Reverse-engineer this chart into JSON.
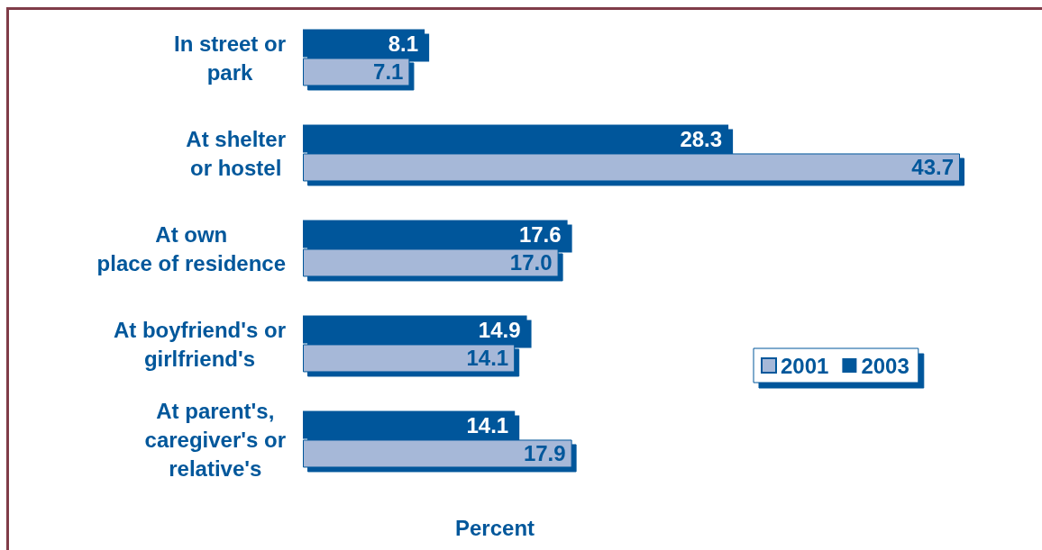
{
  "chart_data": {
    "type": "bar",
    "orientation": "horizontal",
    "xlabel": "Percent",
    "categories": [
      "In street or\npark",
      "At shelter\nor hostel",
      "At own\nplace of residence",
      "At boyfriend's or\ngirlfriend's",
      "At parent's,\ncaregiver's or\nrelative's"
    ],
    "series": [
      {
        "name": "2001",
        "color": "#a6b8d8",
        "values": [
          7.1,
          43.7,
          17.0,
          14.1,
          17.9
        ],
        "value_labels": [
          "7.1",
          "43.7",
          "17.0",
          "14.1",
          "17.9"
        ]
      },
      {
        "name": "2003",
        "color": "#00579b",
        "values": [
          8.1,
          28.3,
          17.6,
          14.9,
          14.1
        ],
        "value_labels": [
          "8.1",
          "28.3",
          "17.6",
          "14.9",
          "14.1"
        ]
      }
    ],
    "legend": "right"
  }
}
